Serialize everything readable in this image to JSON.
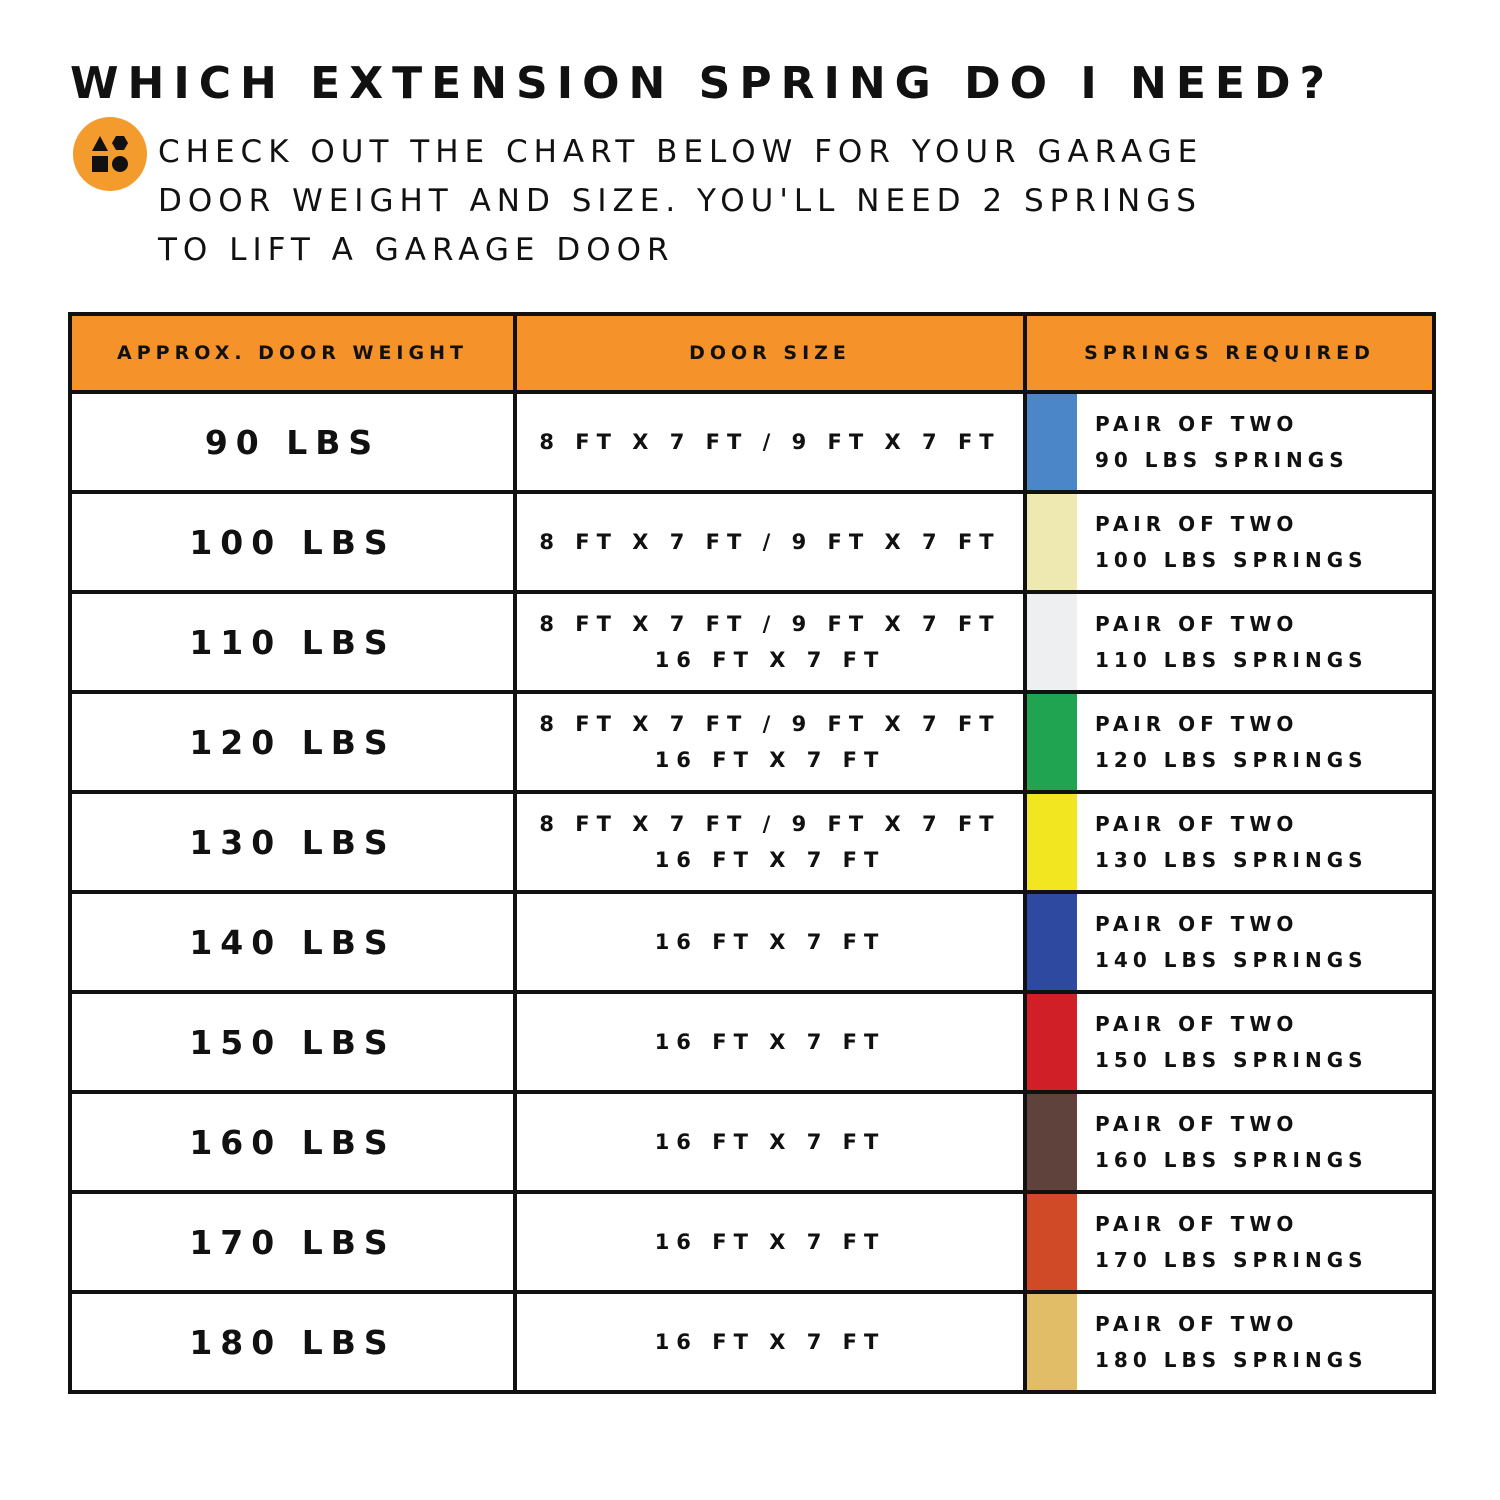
{
  "header": {
    "title": "WHICH EXTENSION SPRING DO I NEED?",
    "icon": "shapes-icon",
    "intro_lines": [
      "CHECK OUT THE CHART BELOW FOR YOUR GARAGE",
      "DOOR WEIGHT AND SIZE. YOU'LL NEED 2 SPRINGS",
      "TO LIFT A GARAGE DOOR"
    ]
  },
  "table": {
    "columns": [
      "APPROX. DOOR WEIGHT",
      "DOOR SIZE",
      "SPRINGS REQUIRED"
    ],
    "header_color": "#f5922a",
    "rows": [
      {
        "weight": "90 LBS",
        "size": [
          "8 FT X 7 FT / 9 FT X 7 FT"
        ],
        "spring_line1": "PAIR OF TWO",
        "spring_line2": "90 LBS SPRINGS",
        "color": "#4a86c8"
      },
      {
        "weight": "100 LBS",
        "size": [
          "8 FT X 7 FT / 9 FT X 7 FT"
        ],
        "spring_line1": "PAIR OF TWO",
        "spring_line2": "100 LBS SPRINGS",
        "color": "#ede9b0"
      },
      {
        "weight": "110 LBS",
        "size": [
          "8 FT X 7 FT / 9 FT X 7 FT",
          "16 FT X 7 FT"
        ],
        "spring_line1": "PAIR OF TWO",
        "spring_line2": "110 LBS SPRINGS",
        "color": "#eeeff1"
      },
      {
        "weight": "120 LBS",
        "size": [
          "8 FT X 7 FT / 9 FT X 7 FT",
          "16 FT X 7 FT"
        ],
        "spring_line1": "PAIR OF TWO",
        "spring_line2": "120 LBS SPRINGS",
        "color": "#21a451"
      },
      {
        "weight": "130 LBS",
        "size": [
          "8 FT X 7 FT / 9 FT X 7 FT",
          "16 FT X 7 FT"
        ],
        "spring_line1": "PAIR OF TWO",
        "spring_line2": "130 LBS SPRINGS",
        "color": "#f2e620"
      },
      {
        "weight": "140 LBS",
        "size": [
          "16 FT X 7 FT"
        ],
        "spring_line1": "PAIR OF TWO",
        "spring_line2": "140 LBS SPRINGS",
        "color": "#2e49a0"
      },
      {
        "weight": "150 LBS",
        "size": [
          "16 FT X 7 FT"
        ],
        "spring_line1": "PAIR OF TWO",
        "spring_line2": "150 LBS SPRINGS",
        "color": "#d11f27"
      },
      {
        "weight": "160 LBS",
        "size": [
          "16 FT X 7 FT"
        ],
        "spring_line1": "PAIR OF TWO",
        "spring_line2": "160 LBS SPRINGS",
        "color": "#5e423b"
      },
      {
        "weight": "170 LBS",
        "size": [
          "16 FT X 7 FT"
        ],
        "spring_line1": "PAIR OF TWO",
        "spring_line2": "170 LBS SPRINGS",
        "color": "#d04a27"
      },
      {
        "weight": "180 LBS",
        "size": [
          "16 FT X 7 FT"
        ],
        "spring_line1": "PAIR OF TWO",
        "spring_line2": "180 LBS SPRINGS",
        "color": "#e2bd67"
      }
    ]
  }
}
